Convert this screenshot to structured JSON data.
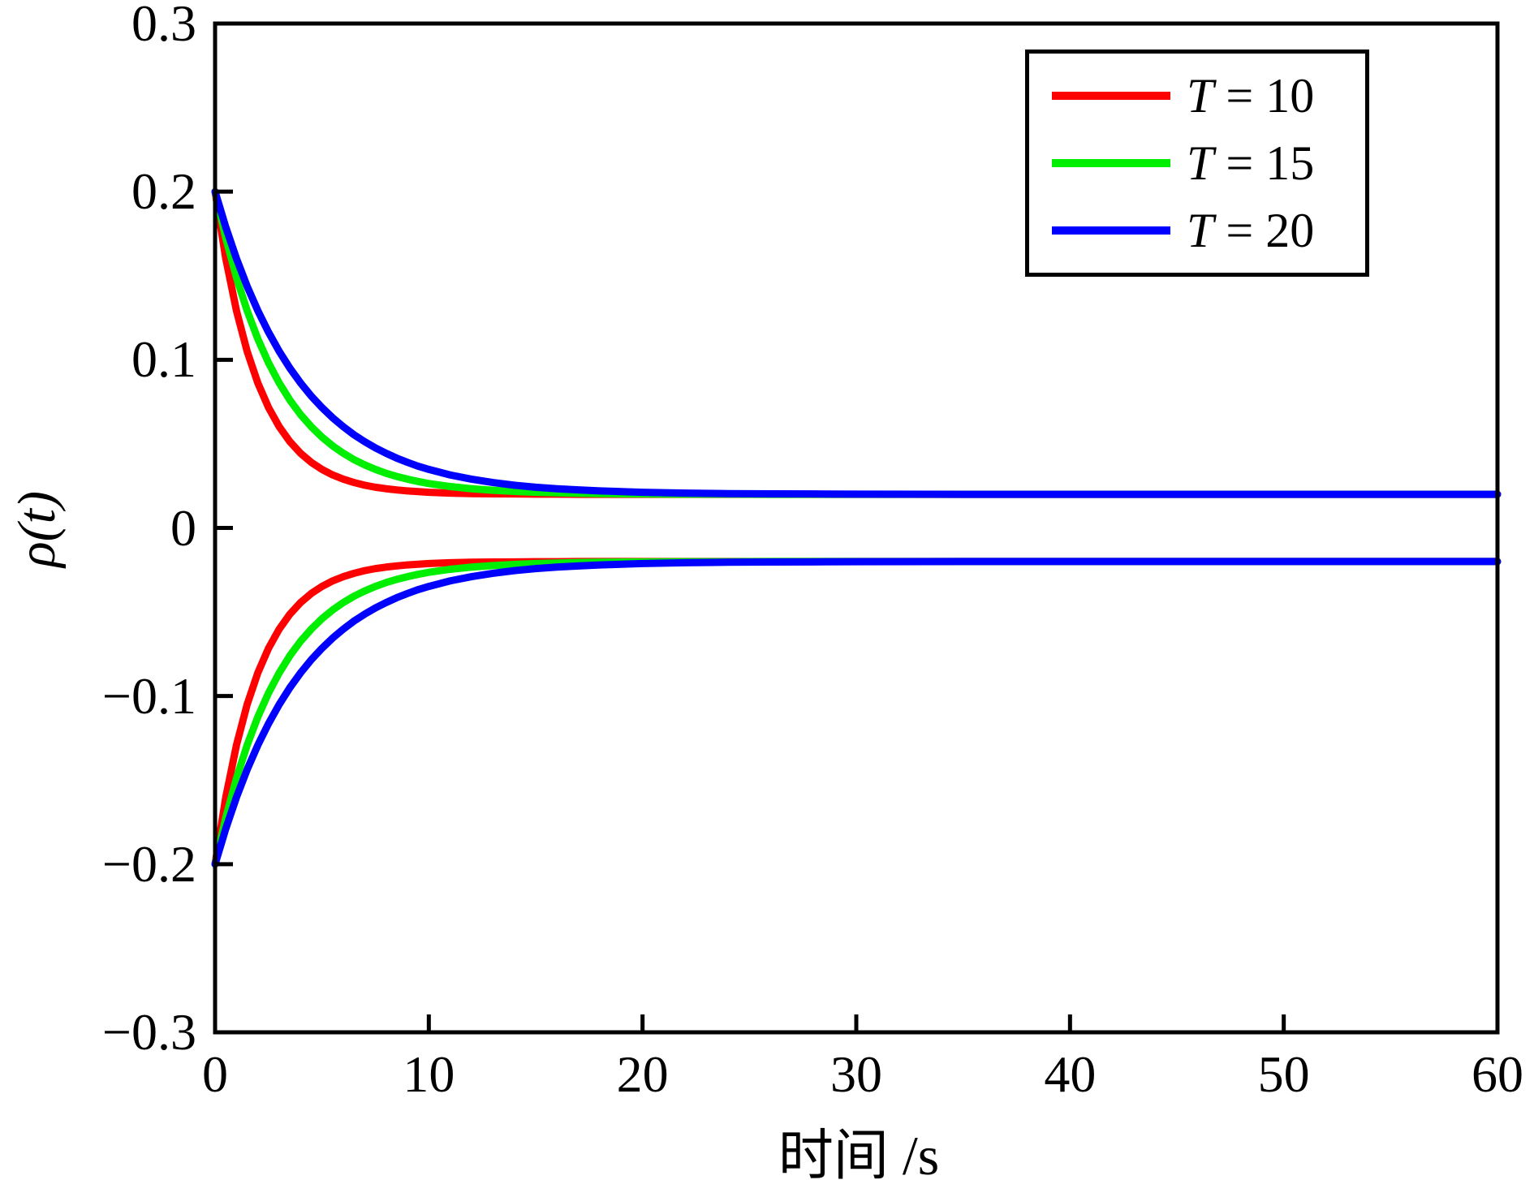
{
  "chart_data": {
    "type": "line",
    "title": "",
    "xlabel": "时间 /s",
    "ylabel": "ρ(t)",
    "xlim": [
      0,
      60
    ],
    "ylim": [
      -0.3,
      0.3
    ],
    "x_ticks": [
      0,
      10,
      20,
      30,
      40,
      50,
      60
    ],
    "x_tick_labels": [
      "0",
      "10",
      "20",
      "30",
      "40",
      "50",
      "60"
    ],
    "y_ticks": [
      0.3,
      0.2,
      0.1,
      0,
      -0.1,
      -0.2,
      -0.3
    ],
    "y_tick_labels": [
      "0.3",
      "0.2",
      "0.1",
      "0",
      "−0.1",
      "−0.2",
      "−0.3"
    ],
    "grid": false,
    "legend_position": "top-right",
    "axis_color": "#000000",
    "start_value_abs": 0.2,
    "asymptote_abs": 0.02,
    "mirrored_about_zero": true,
    "x": [
      0,
      0.5,
      1,
      1.5,
      2,
      2.5,
      3,
      3.5,
      4,
      4.5,
      5,
      5.5,
      6,
      6.5,
      7,
      7.5,
      8,
      8.5,
      9,
      9.5,
      10,
      11,
      12,
      13,
      14,
      15,
      16,
      17,
      18,
      19,
      20,
      22,
      24,
      26,
      28,
      30,
      35,
      40,
      45,
      50,
      55,
      60
    ],
    "series": [
      {
        "name": "T = 10",
        "legend_var": "T",
        "legend_rest": " = 10",
        "T": 10,
        "color": "#ff0000",
        "mirrored": true,
        "values": [
          0.2,
          0.1602,
          0.1292,
          0.105,
          0.0862,
          0.0716,
          0.0602,
          0.0513,
          0.0444,
          0.039,
          0.0348,
          0.0315,
          0.029,
          0.027,
          0.0254,
          0.0242,
          0.0233,
          0.0226,
          0.022,
          0.0216,
          0.0212,
          0.0207,
          0.0204,
          0.0203,
          0.0202,
          0.0201,
          0.0201,
          0.02,
          0.02,
          0.02,
          0.02,
          0.02,
          0.02,
          0.02,
          0.02,
          0.02,
          0.02,
          0.02,
          0.02,
          0.02,
          0.02,
          0.02
        ]
      },
      {
        "name": "T = 15",
        "legend_var": "T",
        "legend_rest": " = 15",
        "T": 15,
        "color": "#00ee00",
        "mirrored": true,
        "values": [
          0.2,
          0.1724,
          0.149,
          0.1292,
          0.1124,
          0.0982,
          0.0862,
          0.076,
          0.0674,
          0.0602,
          0.054,
          0.0488,
          0.0444,
          0.0406,
          0.0375,
          0.0348,
          0.0325,
          0.0306,
          0.029,
          0.0276,
          0.0264,
          0.0246,
          0.0233,
          0.0224,
          0.0217,
          0.0212,
          0.0209,
          0.0206,
          0.0204,
          0.0203,
          0.0202,
          0.0201,
          0.0201,
          0.02,
          0.02,
          0.02,
          0.02,
          0.02,
          0.02,
          0.02,
          0.02,
          0.02
        ]
      },
      {
        "name": "T = 20",
        "legend_var": "T",
        "legend_rest": " = 20",
        "T": 20,
        "color": "#0000ff",
        "mirrored": true,
        "values": [
          0.2,
          0.1789,
          0.1602,
          0.1437,
          0.1292,
          0.1164,
          0.105,
          0.095,
          0.0862,
          0.0784,
          0.0716,
          0.0655,
          0.0602,
          0.0554,
          0.0513,
          0.0476,
          0.0444,
          0.0415,
          0.039,
          0.0367,
          0.0348,
          0.0315,
          0.029,
          0.027,
          0.0254,
          0.0242,
          0.0233,
          0.0226,
          0.022,
          0.0216,
          0.0212,
          0.0207,
          0.0204,
          0.0203,
          0.0202,
          0.0201,
          0.02,
          0.02,
          0.02,
          0.02,
          0.02,
          0.02
        ]
      }
    ]
  }
}
